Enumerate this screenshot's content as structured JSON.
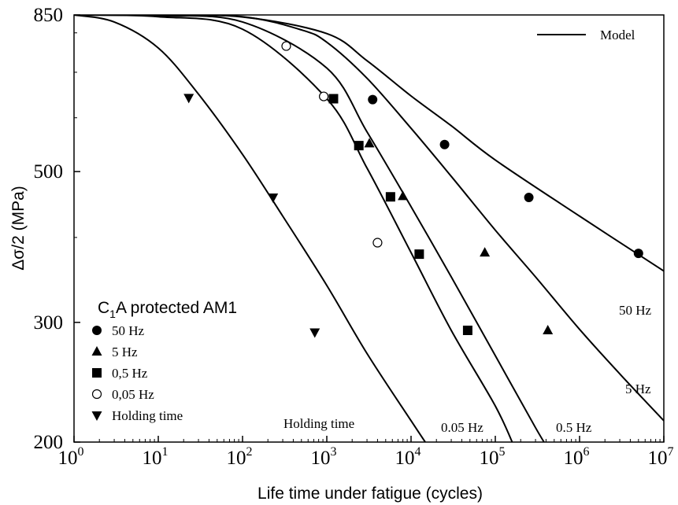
{
  "chart_data": {
    "type": "scatter",
    "title": "",
    "xlabel": "Life time under fatigue (cycles)",
    "ylabel": "Δσ/2 (MPa)",
    "x_scale": "log",
    "y_scale": "log",
    "xlim": [
      1,
      10000000
    ],
    "ylim": [
      200,
      850
    ],
    "x_ticks": [
      {
        "value": 1,
        "base": "10",
        "exp": "0"
      },
      {
        "value": 10,
        "base": "10",
        "exp": "1"
      },
      {
        "value": 100,
        "base": "10",
        "exp": "2"
      },
      {
        "value": 1000,
        "base": "10",
        "exp": "3"
      },
      {
        "value": 10000,
        "base": "10",
        "exp": "4"
      },
      {
        "value": 100000,
        "base": "10",
        "exp": "5"
      },
      {
        "value": 1000000,
        "base": "10",
        "exp": "6"
      },
      {
        "value": 10000000,
        "base": "10",
        "exp": "7"
      }
    ],
    "y_ticks": [
      {
        "value": 200,
        "label": "200"
      },
      {
        "value": 300,
        "label": "300"
      },
      {
        "value": 500,
        "label": "500"
      },
      {
        "value": 850,
        "label": "850"
      }
    ],
    "grid": false,
    "legend": {
      "placement": "bottom-left",
      "title_main": "C",
      "title_sub": "1",
      "title_rest": "A protected AM1",
      "line_label": "Model"
    },
    "series": [
      {
        "name": "50 Hz",
        "marker": "circle-filled",
        "points": [
          [
            3500,
            638
          ],
          [
            25000,
            548
          ],
          [
            250000,
            458
          ],
          [
            5000000,
            379
          ]
        ]
      },
      {
        "name": "5 Hz",
        "marker": "triangle-up",
        "points": [
          [
            3200,
            550
          ],
          [
            8000,
            460
          ],
          [
            75000,
            380
          ],
          [
            420000,
            292
          ]
        ]
      },
      {
        "name": "0,5 Hz",
        "marker": "square-filled",
        "points": [
          [
            1200,
            640
          ],
          [
            2400,
            546
          ],
          [
            5700,
            459
          ],
          [
            12500,
            378
          ],
          [
            47000,
            292
          ]
        ]
      },
      {
        "name": "0,05 Hz",
        "marker": "circle-open",
        "points": [
          [
            330,
            765
          ],
          [
            920,
            645
          ],
          [
            4000,
            393
          ]
        ]
      },
      {
        "name": "Holding time",
        "marker": "triangle-down",
        "points": [
          [
            23,
            642
          ],
          [
            230,
            458
          ],
          [
            720,
            290
          ]
        ]
      }
    ],
    "model_curves": [
      {
        "label": "50 Hz",
        "points": [
          [
            1,
            850
          ],
          [
            10,
            849
          ],
          [
            100,
            844
          ],
          [
            1000,
            798
          ],
          [
            3000,
            728
          ],
          [
            10000,
            646
          ],
          [
            30000,
            584
          ],
          [
            100000,
            520
          ],
          [
            1000000,
            430
          ],
          [
            10000000,
            357
          ]
        ]
      },
      {
        "label": "5 Hz",
        "points": [
          [
            1,
            850
          ],
          [
            10,
            849
          ],
          [
            100,
            845
          ],
          [
            500,
            808
          ],
          [
            1000,
            775
          ],
          [
            3000,
            686
          ],
          [
            10000,
            579
          ],
          [
            30000,
            492
          ],
          [
            100000,
            410
          ],
          [
            300000,
            350
          ],
          [
            1000000,
            293
          ],
          [
            3000000,
            252
          ],
          [
            10000000,
            215
          ]
        ]
      },
      {
        "label": "0.5 Hz",
        "points": [
          [
            1,
            850
          ],
          [
            10,
            848
          ],
          [
            100,
            830
          ],
          [
            1000,
            710
          ],
          [
            3000,
            572
          ],
          [
            10000,
            444
          ],
          [
            30000,
            350
          ],
          [
            100000,
            268
          ],
          [
            300000,
            210
          ],
          [
            420000,
            196
          ]
        ]
      },
      {
        "label": "0.05 Hz",
        "points": [
          [
            1,
            850
          ],
          [
            10,
            845
          ],
          [
            100,
            810
          ],
          [
            1000,
            640
          ],
          [
            3000,
            506
          ],
          [
            10000,
            380
          ],
          [
            30000,
            292
          ],
          [
            100000,
            226
          ],
          [
            170000,
            196
          ]
        ]
      },
      {
        "label": "Holding time",
        "points": [
          [
            1,
            850
          ],
          [
            3,
            830
          ],
          [
            10,
            760
          ],
          [
            30,
            650
          ],
          [
            100,
            530
          ],
          [
            300,
            430
          ],
          [
            1000,
            340
          ],
          [
            3000,
            270
          ],
          [
            10000,
            215
          ],
          [
            16000,
            197
          ]
        ]
      }
    ]
  }
}
